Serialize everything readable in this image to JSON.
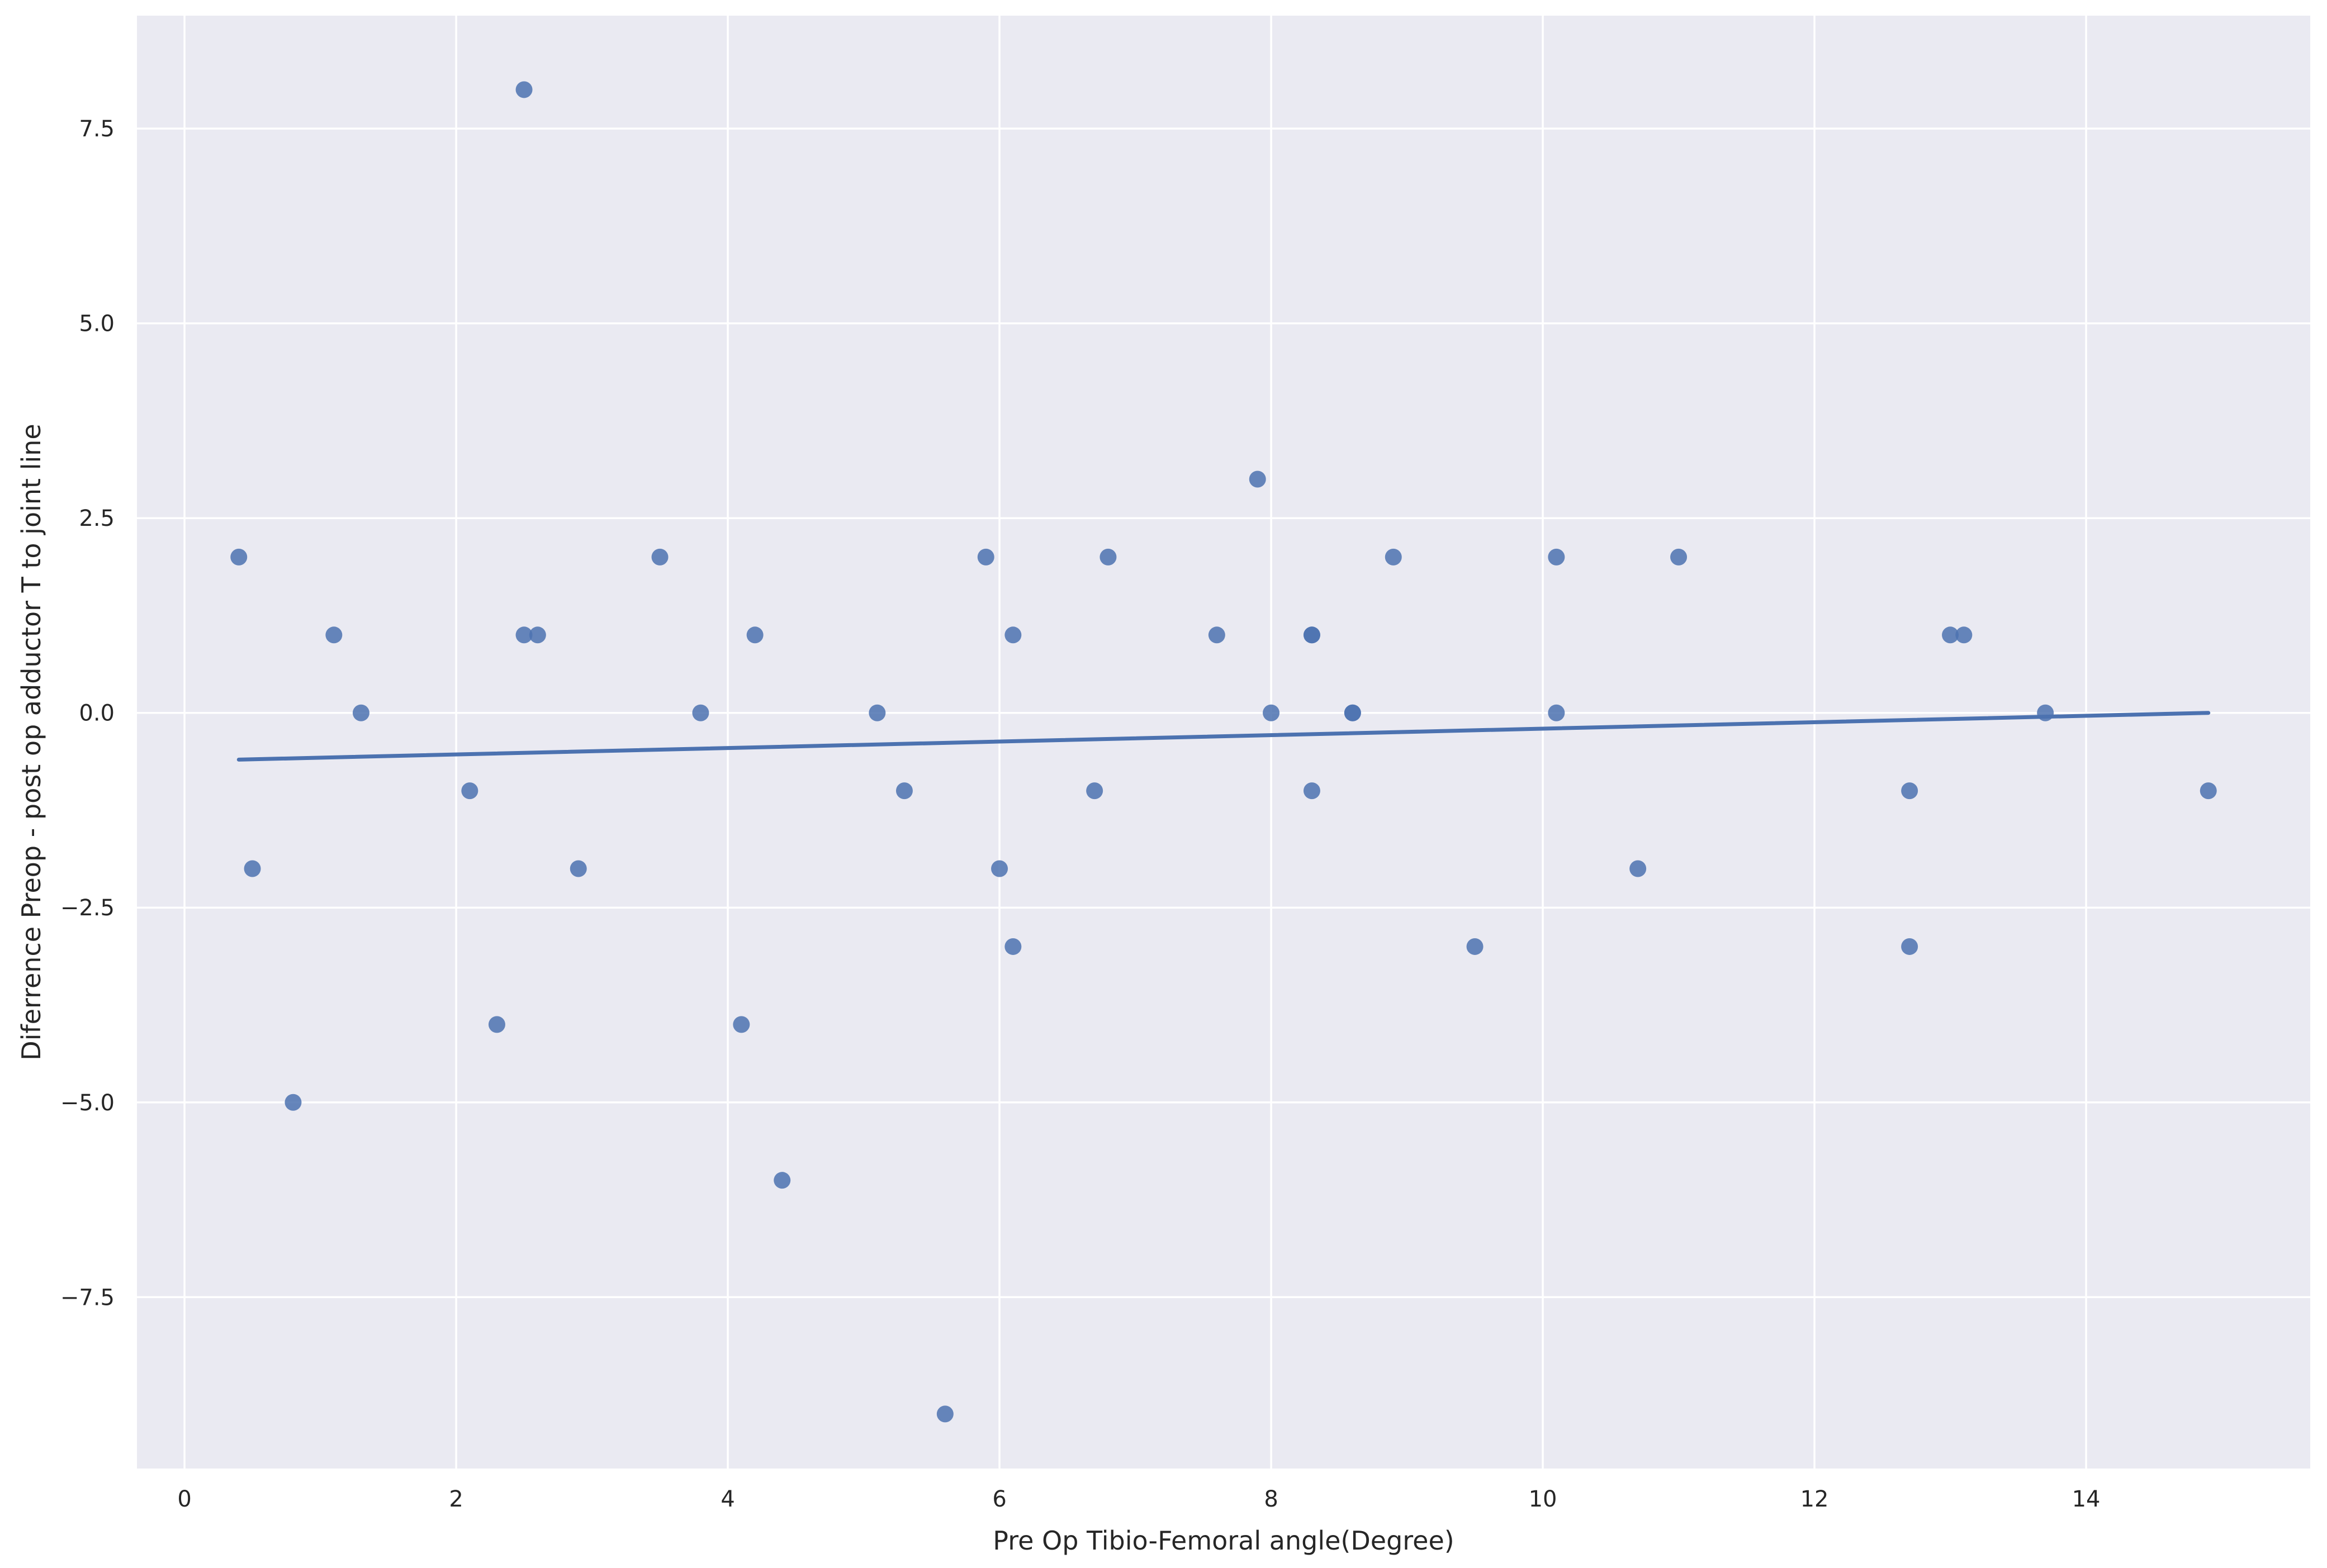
{
  "chart_data": {
    "type": "scatter",
    "title": "",
    "xlabel": "Pre Op Tibio-Femoral angle(Degree)",
    "ylabel": "Diferrence Preop - post op adductor T to joint line",
    "xlim": [
      -0.35,
      15.65
    ],
    "ylim": [
      -9.7,
      8.95
    ],
    "xticks": [
      0,
      2,
      4,
      6,
      8,
      10,
      12,
      14
    ],
    "xtick_labels": [
      "0",
      "2",
      "4",
      "6",
      "8",
      "10",
      "12",
      "14"
    ],
    "yticks": [
      7.5,
      5.0,
      2.5,
      0.0,
      -2.5,
      -5.0,
      -7.5
    ],
    "ytick_labels": [
      "7.5",
      "5.0",
      "2.5",
      "0.0",
      "−2.5",
      "−5.0",
      "−7.5"
    ],
    "grid": true,
    "colors": {
      "background": "#eaeaf2",
      "grid": "#ffffff",
      "points": "#4c72b0",
      "line": "#4c72b0"
    },
    "points": [
      {
        "x": 0.4,
        "y": 2
      },
      {
        "x": 0.5,
        "y": -2
      },
      {
        "x": 0.8,
        "y": -5
      },
      {
        "x": 1.1,
        "y": 1
      },
      {
        "x": 1.3,
        "y": 0
      },
      {
        "x": 2.1,
        "y": -1
      },
      {
        "x": 2.3,
        "y": -4
      },
      {
        "x": 2.5,
        "y": 8
      },
      {
        "x": 2.5,
        "y": 1
      },
      {
        "x": 2.6,
        "y": 1
      },
      {
        "x": 2.9,
        "y": -2
      },
      {
        "x": 3.5,
        "y": 2
      },
      {
        "x": 3.8,
        "y": 0
      },
      {
        "x": 4.1,
        "y": -4
      },
      {
        "x": 4.2,
        "y": 1
      },
      {
        "x": 4.4,
        "y": -6
      },
      {
        "x": 5.1,
        "y": 0
      },
      {
        "x": 5.3,
        "y": -1
      },
      {
        "x": 5.6,
        "y": -9
      },
      {
        "x": 5.9,
        "y": 2
      },
      {
        "x": 6.0,
        "y": -2
      },
      {
        "x": 6.1,
        "y": 1
      },
      {
        "x": 6.1,
        "y": -3
      },
      {
        "x": 6.7,
        "y": -1
      },
      {
        "x": 6.8,
        "y": 2
      },
      {
        "x": 7.6,
        "y": 1
      },
      {
        "x": 7.9,
        "y": 3
      },
      {
        "x": 8.0,
        "y": 0
      },
      {
        "x": 8.3,
        "y": 1
      },
      {
        "x": 8.3,
        "y": 1
      },
      {
        "x": 8.3,
        "y": -1
      },
      {
        "x": 8.6,
        "y": 0
      },
      {
        "x": 8.6,
        "y": 0
      },
      {
        "x": 8.9,
        "y": 2
      },
      {
        "x": 9.5,
        "y": -3
      },
      {
        "x": 10.1,
        "y": 2
      },
      {
        "x": 10.1,
        "y": 0
      },
      {
        "x": 10.7,
        "y": -2
      },
      {
        "x": 11.0,
        "y": 2
      },
      {
        "x": 12.7,
        "y": -1
      },
      {
        "x": 12.7,
        "y": -3
      },
      {
        "x": 13.0,
        "y": 1
      },
      {
        "x": 13.1,
        "y": 1
      },
      {
        "x": 13.7,
        "y": 0
      },
      {
        "x": 14.9,
        "y": -1
      }
    ],
    "regression_line": {
      "x": [
        0.4,
        14.9
      ],
      "y": [
        -0.6,
        0.0
      ]
    }
  }
}
